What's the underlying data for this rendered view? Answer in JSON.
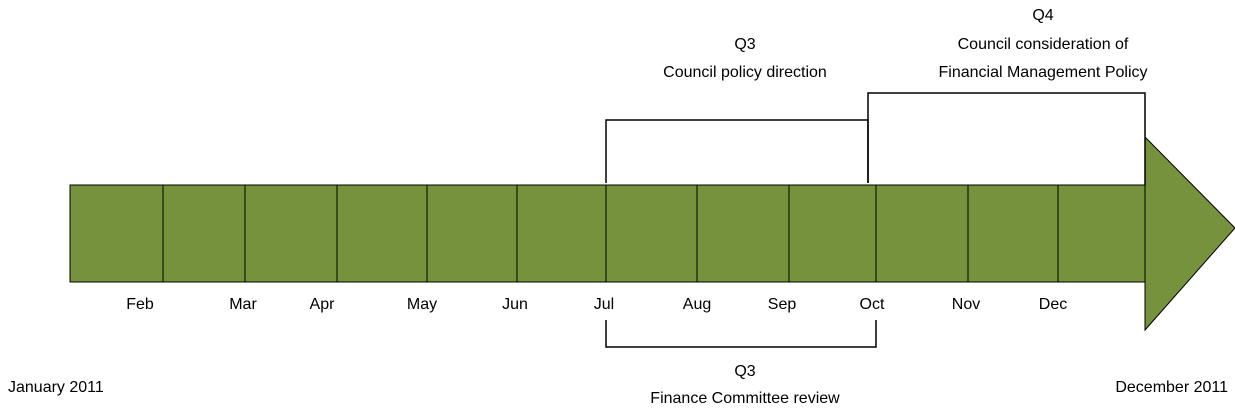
{
  "timeline": {
    "start_label": "January 2011",
    "end_label": "December 2011",
    "months": [
      "Feb",
      "Mar",
      "Apr",
      "May",
      "Jun",
      "Jul",
      "Aug",
      "Sep",
      "Oct",
      "Nov",
      "Dec"
    ],
    "brackets": [
      {
        "quarter": "Q3",
        "lines": [
          "Council policy direction"
        ]
      },
      {
        "quarter": "Q4",
        "lines": [
          "Council consideration of",
          "Financial Management Policy"
        ]
      },
      {
        "quarter": "Q3",
        "lines": [
          "Finance Committee review"
        ]
      }
    ]
  }
}
